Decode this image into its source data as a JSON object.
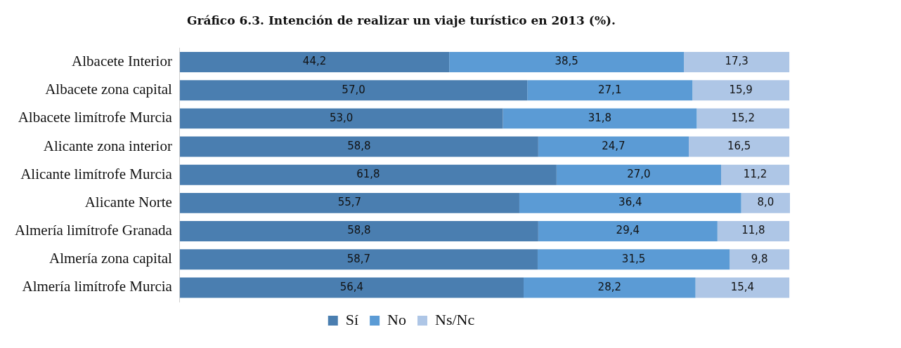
{
  "chart_data": {
    "type": "bar",
    "orientation": "horizontal",
    "stacked": true,
    "title": "Gráfico 6.3. Intención de realizar un viaje turístico en 2013 (%).",
    "categories": [
      "Albacete Interior",
      "Albacete zona capital",
      "Albacete limítrofe Murcia",
      "Alicante zona interior",
      "Alicante limítrofe Murcia",
      "Alicante Norte",
      "Almería limítrofe Granada",
      "Almería zona capital",
      "Almería limítrofe Murcia"
    ],
    "series": [
      {
        "name": "Sí",
        "color": "#4a7eb0",
        "values": [
          44.2,
          57.0,
          53.0,
          58.8,
          61.8,
          55.7,
          58.8,
          58.7,
          56.4
        ],
        "value_labels": [
          "44,2",
          "57,0",
          "53,0",
          "58,8",
          "61,8",
          "55,7",
          "58,8",
          "58,7",
          "56,4"
        ]
      },
      {
        "name": "No",
        "color": "#5b9bd5",
        "values": [
          38.5,
          27.1,
          31.8,
          24.7,
          27.0,
          36.4,
          29.4,
          31.5,
          28.2
        ],
        "value_labels": [
          "38,5",
          "27,1",
          "31,8",
          "24,7",
          "27,0",
          "36,4",
          "29,4",
          "31,5",
          "28,2"
        ]
      },
      {
        "name": "Ns/Nc",
        "color": "#aec6e6",
        "values": [
          17.3,
          15.9,
          15.2,
          16.5,
          11.2,
          8.0,
          11.8,
          9.8,
          15.4
        ],
        "value_labels": [
          "17,3",
          "15,9",
          "15,2",
          "16,5",
          "11,2",
          "8,0",
          "11,8",
          "9,8",
          "15,4"
        ]
      }
    ],
    "legend": "bottom"
  }
}
